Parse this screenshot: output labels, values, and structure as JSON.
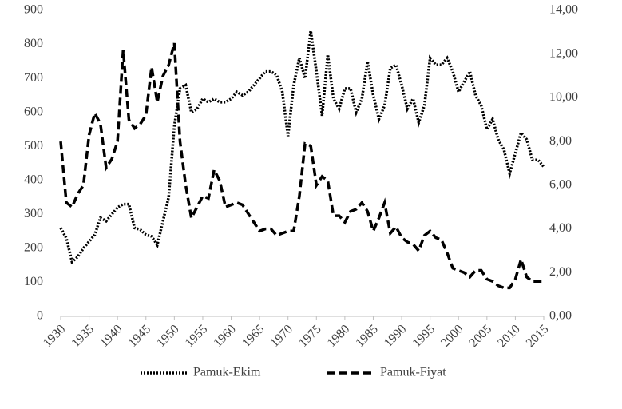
{
  "chart_data": {
    "type": "line",
    "x": [
      1930,
      1931,
      1932,
      1933,
      1934,
      1935,
      1936,
      1937,
      1938,
      1939,
      1940,
      1941,
      1942,
      1943,
      1944,
      1945,
      1946,
      1947,
      1948,
      1949,
      1950,
      1951,
      1952,
      1953,
      1954,
      1955,
      1956,
      1957,
      1958,
      1959,
      1960,
      1961,
      1962,
      1963,
      1964,
      1965,
      1966,
      1967,
      1968,
      1969,
      1970,
      1971,
      1972,
      1973,
      1974,
      1975,
      1976,
      1977,
      1978,
      1979,
      1980,
      1981,
      1982,
      1983,
      1984,
      1985,
      1986,
      1987,
      1988,
      1989,
      1990,
      1991,
      1992,
      1993,
      1994,
      1995,
      1996,
      1997,
      1998,
      1999,
      2000,
      2001,
      2002,
      2003,
      2004,
      2005,
      2006,
      2007,
      2008,
      2009,
      2010,
      2011,
      2012,
      2013,
      2014,
      2015
    ],
    "xlim": [
      1930,
      2015
    ],
    "xticks": [
      1930,
      1935,
      1940,
      1945,
      1950,
      1955,
      1960,
      1965,
      1970,
      1975,
      1980,
      1985,
      1990,
      1995,
      2000,
      2005,
      2010,
      2015
    ],
    "ylim": [
      0,
      900
    ],
    "yticks": [
      0,
      100,
      200,
      300,
      400,
      500,
      600,
      700,
      800,
      900
    ],
    "y2lim": [
      0,
      14
    ],
    "y2ticks": [
      {
        "value": 0,
        "label": "0,00"
      },
      {
        "value": 2,
        "label": "2,00"
      },
      {
        "value": 4,
        "label": "4,00"
      },
      {
        "value": 6,
        "label": "6,00"
      },
      {
        "value": 8,
        "label": "8,00"
      },
      {
        "value": 10,
        "label": "10,00"
      },
      {
        "value": 12,
        "label": "12,00"
      },
      {
        "value": 14,
        "label": "14,00"
      }
    ],
    "grid": false,
    "legend": "bottom",
    "series": [
      {
        "name": "Pamuk-Ekim",
        "color": "#000000",
        "dash": "dotted",
        "axis": "y",
        "values": [
          260,
          230,
          160,
          175,
          200,
          220,
          240,
          290,
          280,
          300,
          320,
          330,
          330,
          260,
          255,
          240,
          235,
          210,
          280,
          350,
          560,
          670,
          680,
          600,
          610,
          640,
          630,
          640,
          630,
          630,
          640,
          660,
          650,
          660,
          680,
          700,
          720,
          720,
          710,
          660,
          530,
          680,
          760,
          700,
          840,
          720,
          590,
          770,
          640,
          610,
          670,
          670,
          600,
          640,
          750,
          650,
          580,
          620,
          730,
          740,
          680,
          610,
          640,
          570,
          620,
          760,
          740,
          740,
          760,
          720,
          660,
          690,
          720,
          650,
          620,
          550,
          580,
          520,
          490,
          420,
          480,
          540,
          520,
          460,
          460,
          440
        ]
      },
      {
        "name": "Pamuk-Fiyat",
        "color": "#000000",
        "dash": "dashed",
        "axis": "y2",
        "values": [
          8.0,
          5.2,
          5.0,
          5.6,
          6.0,
          8.3,
          9.3,
          8.8,
          6.8,
          7.2,
          8.0,
          12.2,
          9.0,
          8.6,
          8.8,
          9.2,
          11.4,
          9.8,
          11.0,
          11.5,
          12.5,
          8.0,
          6.0,
          4.5,
          5.0,
          5.5,
          5.4,
          6.7,
          6.2,
          5.0,
          5.1,
          5.2,
          5.1,
          4.7,
          4.3,
          3.9,
          4.0,
          4.0,
          3.7,
          3.8,
          3.9,
          3.9,
          5.5,
          7.9,
          7.8,
          6.0,
          6.4,
          6.2,
          4.6,
          4.6,
          4.3,
          4.8,
          4.9,
          5.2,
          4.8,
          3.9,
          4.5,
          5.2,
          3.8,
          4.1,
          3.6,
          3.4,
          3.3,
          3.0,
          3.7,
          3.9,
          3.6,
          3.5,
          2.9,
          2.2,
          2.1,
          2.0,
          1.8,
          2.1,
          2.1,
          1.7,
          1.6,
          1.4,
          1.3,
          1.3,
          1.7,
          2.6,
          1.8,
          1.6,
          1.6,
          1.6
        ]
      }
    ]
  }
}
